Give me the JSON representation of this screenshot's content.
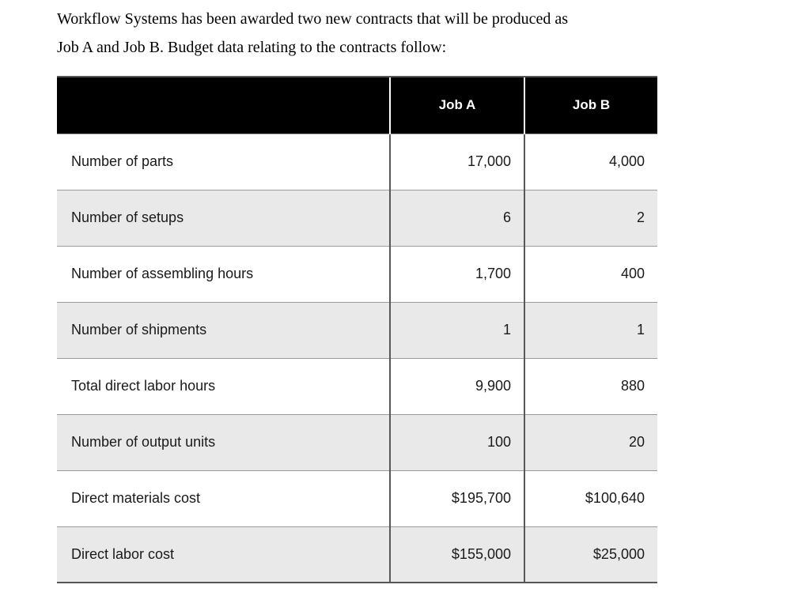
{
  "intro": {
    "lines": [
      "Workflow Systems has been awarded two new contracts that will be produced as",
      "Job A and Job B. Budget data relating to the contracts follow:"
    ]
  },
  "table": {
    "columns": [
      "",
      "Job A",
      "Job B"
    ],
    "rows": [
      {
        "label": "Number of parts",
        "job_a": "17,000",
        "job_b": "4,000"
      },
      {
        "label": "Number of setups",
        "job_a": "6",
        "job_b": "2"
      },
      {
        "label": "Number of assembling hours",
        "job_a": "1,700",
        "job_b": "400"
      },
      {
        "label": "Number of shipments",
        "job_a": "1",
        "job_b": "1"
      },
      {
        "label": "Total direct labor hours",
        "job_a": "9,900",
        "job_b": "880"
      },
      {
        "label": "Number of output units",
        "job_a": "100",
        "job_b": "20"
      },
      {
        "label": "Direct materials cost",
        "job_a": "$195,700",
        "job_b": "$100,640"
      },
      {
        "label": "Direct labor cost",
        "job_a": "$155,000",
        "job_b": "$25,000"
      }
    ]
  },
  "colors": {
    "header_bg": "#000000",
    "header_text": "#ffffff",
    "stripe_bg": "#e9e9e9",
    "row_separator": "#9b9b9b",
    "column_divider": "#58585a",
    "body_text": "#1a1a1a"
  }
}
